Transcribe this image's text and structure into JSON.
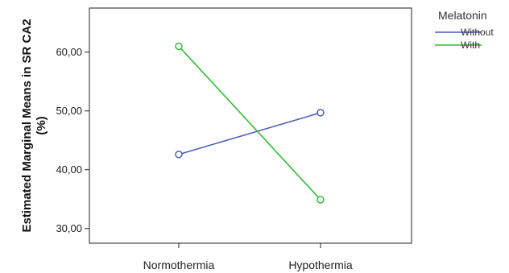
{
  "chart_data": {
    "type": "line",
    "categories": [
      "Normothermia",
      "Hypothermia"
    ],
    "ylabel_line1": "Estimated Marginal Means in SR CA2",
    "ylabel_line2": "(%)",
    "xlabel": "",
    "ylim": [
      27.5,
      67.5
    ],
    "yticks": [
      30,
      40,
      50,
      60
    ],
    "ytick_labels": [
      "30,00",
      "40,00",
      "50,00",
      "60,00"
    ],
    "grid": false,
    "legend": {
      "title": "Melatonin",
      "placement": "right-outside-top"
    },
    "series": [
      {
        "name": "Without",
        "values": [
          42.6,
          49.7
        ],
        "color": "#4a5fc1"
      },
      {
        "name": "With",
        "values": [
          61.0,
          34.9
        ],
        "color": "#33bb33"
      }
    ]
  }
}
